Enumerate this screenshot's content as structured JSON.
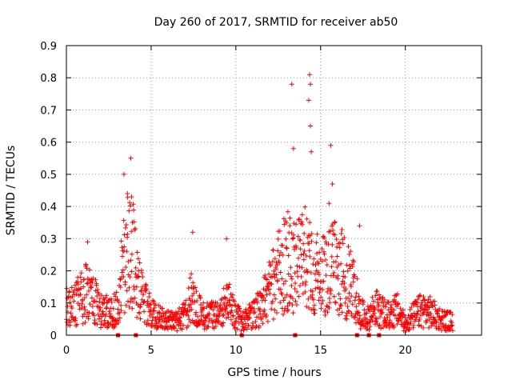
{
  "chart_data": {
    "type": "scatter",
    "title": "Day 260 of 2017, SRMTID for receiver ab50",
    "xlabel": "GPS time / hours",
    "ylabel": "SRMTID / TECUs",
    "xlim": [
      0,
      24.5
    ],
    "ylim": [
      0,
      0.9
    ],
    "xticks": [
      0,
      5,
      10,
      15,
      20
    ],
    "yticks": [
      0,
      0.1,
      0.2,
      0.3,
      0.4,
      0.5,
      0.6,
      0.7,
      0.8,
      0.9
    ],
    "grid": true,
    "marker": "+",
    "color": "#ff0000",
    "envelope": [
      [
        0.0,
        0.1
      ],
      [
        0.5,
        0.11
      ],
      [
        1.0,
        0.14
      ],
      [
        1.3,
        0.16
      ],
      [
        1.6,
        0.13
      ],
      [
        2.0,
        0.09
      ],
      [
        2.5,
        0.08
      ],
      [
        3.0,
        0.1
      ],
      [
        3.3,
        0.22
      ],
      [
        3.6,
        0.32
      ],
      [
        3.9,
        0.3
      ],
      [
        4.2,
        0.18
      ],
      [
        4.6,
        0.12
      ],
      [
        5.0,
        0.08
      ],
      [
        5.5,
        0.06
      ],
      [
        6.0,
        0.05
      ],
      [
        6.5,
        0.05
      ],
      [
        7.0,
        0.07
      ],
      [
        7.4,
        0.15
      ],
      [
        7.7,
        0.09
      ],
      [
        8.2,
        0.07
      ],
      [
        9.0,
        0.07
      ],
      [
        9.5,
        0.12
      ],
      [
        9.9,
        0.08
      ],
      [
        10.3,
        0.05
      ],
      [
        11.0,
        0.07
      ],
      [
        11.5,
        0.1
      ],
      [
        12.0,
        0.16
      ],
      [
        12.5,
        0.22
      ],
      [
        13.0,
        0.26
      ],
      [
        13.5,
        0.24
      ],
      [
        14.0,
        0.28
      ],
      [
        14.5,
        0.24
      ],
      [
        15.0,
        0.2
      ],
      [
        15.5,
        0.28
      ],
      [
        16.0,
        0.24
      ],
      [
        16.5,
        0.2
      ],
      [
        17.0,
        0.16
      ],
      [
        17.3,
        0.08
      ],
      [
        17.8,
        0.06
      ],
      [
        18.2,
        0.1
      ],
      [
        18.6,
        0.08
      ],
      [
        19.0,
        0.07
      ],
      [
        19.5,
        0.09
      ],
      [
        20.0,
        0.04
      ],
      [
        20.5,
        0.07
      ],
      [
        21.0,
        0.09
      ],
      [
        21.5,
        0.08
      ],
      [
        22.0,
        0.06
      ],
      [
        22.5,
        0.05
      ],
      [
        22.8,
        0.05
      ]
    ],
    "peaks": [
      [
        1.25,
        0.29
      ],
      [
        3.4,
        0.5
      ],
      [
        3.6,
        0.44
      ],
      [
        3.8,
        0.55
      ],
      [
        3.85,
        0.43
      ],
      [
        7.45,
        0.32
      ],
      [
        9.45,
        0.3
      ],
      [
        13.4,
        0.58
      ],
      [
        13.3,
        0.78
      ],
      [
        14.35,
        0.81
      ],
      [
        14.4,
        0.78
      ],
      [
        14.3,
        0.73
      ],
      [
        14.4,
        0.65
      ],
      [
        14.45,
        0.57
      ],
      [
        15.6,
        0.59
      ],
      [
        15.7,
        0.47
      ],
      [
        17.3,
        0.34
      ]
    ],
    "zero_markers": [
      3.05,
      4.1,
      10.35,
      13.5,
      17.15,
      17.85,
      18.45
    ]
  }
}
